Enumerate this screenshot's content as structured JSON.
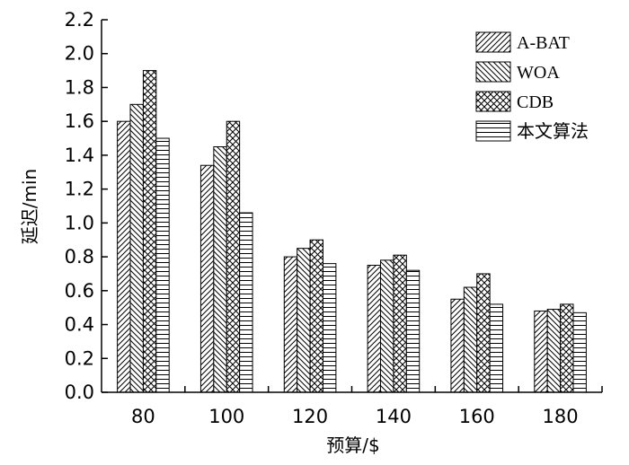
{
  "chart_data": {
    "type": "bar",
    "xlabel": "预算/$",
    "ylabel": "延迟/min",
    "categories": [
      "80",
      "100",
      "120",
      "140",
      "160",
      "180"
    ],
    "ylim": [
      0,
      2.2
    ],
    "yticks": [
      "0.0",
      "0.2",
      "0.4",
      "0.6",
      "0.8",
      "1.0",
      "1.2",
      "1.4",
      "1.6",
      "1.8",
      "2.0",
      "2.2"
    ],
    "legend_position": "top-right",
    "grid": false,
    "series": [
      {
        "name": "A-BAT",
        "pattern": "diagonal-forward",
        "values": [
          1.6,
          1.34,
          0.8,
          0.75,
          0.55,
          0.48
        ]
      },
      {
        "name": "WOA",
        "pattern": "diagonal-back",
        "values": [
          1.7,
          1.45,
          0.85,
          0.78,
          0.62,
          0.49
        ]
      },
      {
        "name": "CDB",
        "pattern": "crosshatch",
        "values": [
          1.9,
          1.6,
          0.9,
          0.81,
          0.7,
          0.52
        ]
      },
      {
        "name": "本文算法",
        "pattern": "horizontal",
        "values": [
          1.5,
          1.06,
          0.76,
          0.72,
          0.52,
          0.47
        ]
      }
    ]
  }
}
